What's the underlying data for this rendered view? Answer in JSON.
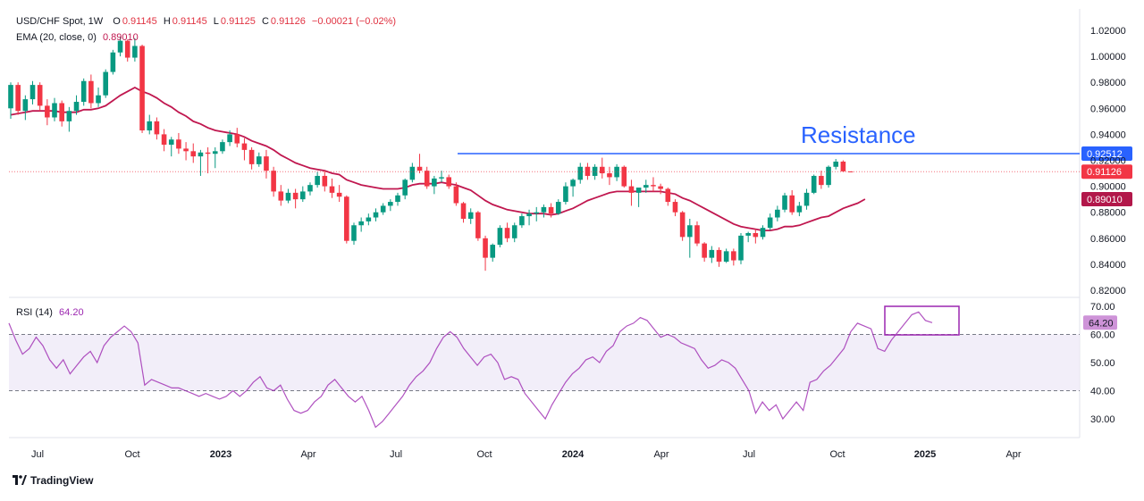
{
  "header": {
    "symbol": "USD/CHF Spot, 1W",
    "open_label": "O",
    "open": "0.91145",
    "high_label": "H",
    "high": "0.91145",
    "low_label": "L",
    "low": "0.91125",
    "close_label": "C",
    "close": "0.91126",
    "change": "−0.00021 (−0.02%)",
    "ema_label": "EMA (20, close, 0)",
    "ema_value": "0.89010",
    "rsi_label": "RSI (14)",
    "rsi_value": "64.20"
  },
  "branding": {
    "logo_text": "TradingView"
  },
  "colors": {
    "up": "#089981",
    "down": "#f23645",
    "ema": "#c0174f",
    "rsi": "#9c27b0",
    "resistance": "#2962ff",
    "rsi_band": "#ede7f6",
    "price_tag": "#f23645"
  },
  "chart_data": [
    {
      "type": "candlestick",
      "interval": "1W",
      "ylim": [
        0.815,
        1.025
      ],
      "yticks": [
        "1.02000",
        "1.00000",
        "0.98000",
        "0.96000",
        "0.94000",
        "0.92000",
        "0.90000",
        "0.88000",
        "0.86000",
        "0.84000",
        "0.82000"
      ],
      "xticks": [
        "Jul",
        "Oct",
        "2023",
        "Apr",
        "Jul",
        "Oct",
        "2024",
        "Apr",
        "Jul",
        "Oct",
        "2025",
        "Apr"
      ],
      "price_labels": {
        "resistance": "0.92512",
        "last": "0.91126",
        "ema": "0.89010"
      },
      "annotation": "Resistance",
      "resistance_level": 0.92512,
      "candles": [
        [
          0.96,
          0.98,
          0.952,
          0.978
        ],
        [
          0.978,
          0.98,
          0.955,
          0.958
        ],
        [
          0.958,
          0.97,
          0.951,
          0.967
        ],
        [
          0.967,
          0.981,
          0.963,
          0.978
        ],
        [
          0.978,
          0.98,
          0.958,
          0.962
        ],
        [
          0.962,
          0.967,
          0.947,
          0.953
        ],
        [
          0.953,
          0.968,
          0.95,
          0.964
        ],
        [
          0.964,
          0.966,
          0.946,
          0.95
        ],
        [
          0.95,
          0.961,
          0.942,
          0.958
        ],
        [
          0.958,
          0.97,
          0.955,
          0.965
        ],
        [
          0.965,
          0.983,
          0.962,
          0.981
        ],
        [
          0.981,
          0.986,
          0.96,
          0.964
        ],
        [
          0.964,
          0.976,
          0.961,
          0.97
        ],
        [
          0.97,
          0.99,
          0.968,
          0.988
        ],
        [
          0.988,
          1.005,
          0.986,
          1.003
        ],
        [
          1.003,
          1.015,
          1.0,
          1.012
        ],
        [
          1.012,
          1.013,
          0.996,
          0.999
        ],
        [
          0.999,
          1.014,
          0.996,
          1.008
        ],
        [
          1.008,
          1.009,
          0.941,
          0.943
        ],
        [
          0.943,
          0.955,
          0.94,
          0.95
        ],
        [
          0.95,
          0.953,
          0.936,
          0.94
        ],
        [
          0.94,
          0.944,
          0.927,
          0.932
        ],
        [
          0.932,
          0.938,
          0.923,
          0.936
        ],
        [
          0.936,
          0.941,
          0.925,
          0.929
        ],
        [
          0.929,
          0.934,
          0.92,
          0.927
        ],
        [
          0.927,
          0.933,
          0.918,
          0.923
        ],
        [
          0.923,
          0.928,
          0.908,
          0.926
        ],
        [
          0.926,
          0.93,
          0.91,
          0.925
        ],
        [
          0.925,
          0.93,
          0.914,
          0.927
        ],
        [
          0.927,
          0.936,
          0.925,
          0.934
        ],
        [
          0.934,
          0.943,
          0.931,
          0.94
        ],
        [
          0.94,
          0.945,
          0.93,
          0.933
        ],
        [
          0.933,
          0.937,
          0.92,
          0.928
        ],
        [
          0.928,
          0.93,
          0.913,
          0.917
        ],
        [
          0.917,
          0.926,
          0.915,
          0.923
        ],
        [
          0.923,
          0.928,
          0.906,
          0.912
        ],
        [
          0.912,
          0.915,
          0.892,
          0.896
        ],
        [
          0.896,
          0.901,
          0.885,
          0.889
        ],
        [
          0.889,
          0.898,
          0.887,
          0.895
        ],
        [
          0.895,
          0.898,
          0.883,
          0.89
        ],
        [
          0.89,
          0.9,
          0.888,
          0.896
        ],
        [
          0.896,
          0.903,
          0.893,
          0.901
        ],
        [
          0.901,
          0.911,
          0.899,
          0.908
        ],
        [
          0.908,
          0.912,
          0.896,
          0.9
        ],
        [
          0.9,
          0.906,
          0.891,
          0.895
        ],
        [
          0.895,
          0.901,
          0.888,
          0.892
        ],
        [
          0.892,
          0.893,
          0.856,
          0.858
        ],
        [
          0.858,
          0.872,
          0.855,
          0.87
        ],
        [
          0.87,
          0.876,
          0.865,
          0.873
        ],
        [
          0.873,
          0.879,
          0.87,
          0.876
        ],
        [
          0.876,
          0.883,
          0.873,
          0.88
        ],
        [
          0.88,
          0.887,
          0.878,
          0.885
        ],
        [
          0.885,
          0.89,
          0.881,
          0.888
        ],
        [
          0.888,
          0.895,
          0.885,
          0.893
        ],
        [
          0.893,
          0.906,
          0.89,
          0.905
        ],
        [
          0.905,
          0.918,
          0.903,
          0.915
        ],
        [
          0.915,
          0.925,
          0.91,
          0.912
        ],
        [
          0.912,
          0.915,
          0.898,
          0.9
        ],
        [
          0.9,
          0.908,
          0.894,
          0.906
        ],
        [
          0.906,
          0.912,
          0.903,
          0.907
        ],
        [
          0.907,
          0.909,
          0.898,
          0.9
        ],
        [
          0.9,
          0.903,
          0.885,
          0.887
        ],
        [
          0.887,
          0.888,
          0.872,
          0.875
        ],
        [
          0.875,
          0.883,
          0.871,
          0.88
        ],
        [
          0.88,
          0.881,
          0.858,
          0.86
        ],
        [
          0.86,
          0.862,
          0.835,
          0.845
        ],
        [
          0.845,
          0.856,
          0.842,
          0.855
        ],
        [
          0.855,
          0.87,
          0.853,
          0.868
        ],
        [
          0.868,
          0.872,
          0.857,
          0.86
        ],
        [
          0.86,
          0.872,
          0.857,
          0.87
        ],
        [
          0.87,
          0.879,
          0.868,
          0.877
        ],
        [
          0.877,
          0.882,
          0.87,
          0.879
        ],
        [
          0.879,
          0.884,
          0.873,
          0.88
        ],
        [
          0.88,
          0.886,
          0.876,
          0.884
        ],
        [
          0.884,
          0.887,
          0.876,
          0.879
        ],
        [
          0.879,
          0.89,
          0.878,
          0.888
        ],
        [
          0.888,
          0.903,
          0.886,
          0.9
        ],
        [
          0.9,
          0.906,
          0.892,
          0.905
        ],
        [
          0.905,
          0.918,
          0.902,
          0.915
        ],
        [
          0.915,
          0.918,
          0.905,
          0.908
        ],
        [
          0.908,
          0.917,
          0.905,
          0.915
        ],
        [
          0.915,
          0.922,
          0.906,
          0.91
        ],
        [
          0.91,
          0.915,
          0.901,
          0.907
        ],
        [
          0.907,
          0.917,
          0.904,
          0.915
        ],
        [
          0.915,
          0.916,
          0.899,
          0.9
        ],
        [
          0.9,
          0.905,
          0.885,
          0.895
        ],
        [
          0.895,
          0.898,
          0.884,
          0.899
        ],
        [
          0.899,
          0.905,
          0.895,
          0.901
        ],
        [
          0.901,
          0.907,
          0.896,
          0.9
        ],
        [
          0.9,
          0.902,
          0.894,
          0.898
        ],
        [
          0.898,
          0.899,
          0.885,
          0.888
        ],
        [
          0.888,
          0.89,
          0.877,
          0.88
        ],
        [
          0.88,
          0.881,
          0.858,
          0.861
        ],
        [
          0.861,
          0.875,
          0.845,
          0.87
        ],
        [
          0.87,
          0.873,
          0.854,
          0.856
        ],
        [
          0.856,
          0.857,
          0.842,
          0.845
        ],
        [
          0.845,
          0.854,
          0.841,
          0.851
        ],
        [
          0.851,
          0.853,
          0.838,
          0.842
        ],
        [
          0.842,
          0.852,
          0.841,
          0.85
        ],
        [
          0.85,
          0.852,
          0.839,
          0.843
        ],
        [
          0.843,
          0.864,
          0.84,
          0.862
        ],
        [
          0.862,
          0.865,
          0.857,
          0.864
        ],
        [
          0.864,
          0.867,
          0.856,
          0.861
        ],
        [
          0.861,
          0.87,
          0.859,
          0.868
        ],
        [
          0.868,
          0.879,
          0.866,
          0.876
        ],
        [
          0.876,
          0.885,
          0.873,
          0.882
        ],
        [
          0.882,
          0.895,
          0.88,
          0.893
        ],
        [
          0.893,
          0.897,
          0.878,
          0.88
        ],
        [
          0.88,
          0.888,
          0.877,
          0.885
        ],
        [
          0.885,
          0.898,
          0.882,
          0.895
        ],
        [
          0.895,
          0.909,
          0.894,
          0.908
        ],
        [
          0.908,
          0.912,
          0.898,
          0.901
        ],
        [
          0.901,
          0.916,
          0.899,
          0.915
        ],
        [
          0.915,
          0.921,
          0.913,
          0.919
        ],
        [
          0.919,
          0.92,
          0.911,
          0.9115
        ],
        [
          0.91145,
          0.91145,
          0.91125,
          0.91126
        ]
      ]
    },
    {
      "type": "line",
      "name": "EMA (20, close, 0)",
      "values": [
        0.955,
        0.956,
        0.957,
        0.958,
        0.958,
        0.958,
        0.958,
        0.957,
        0.957,
        0.957,
        0.959,
        0.959,
        0.96,
        0.962,
        0.966,
        0.97,
        0.973,
        0.976,
        0.973,
        0.971,
        0.968,
        0.964,
        0.961,
        0.957,
        0.954,
        0.95,
        0.948,
        0.945,
        0.943,
        0.942,
        0.941,
        0.94,
        0.938,
        0.935,
        0.933,
        0.931,
        0.928,
        0.924,
        0.921,
        0.918,
        0.916,
        0.914,
        0.913,
        0.912,
        0.91,
        0.909,
        0.905,
        0.903,
        0.901,
        0.9,
        0.899,
        0.898,
        0.898,
        0.898,
        0.899,
        0.901,
        0.902,
        0.902,
        0.902,
        0.903,
        0.902,
        0.901,
        0.899,
        0.897,
        0.893,
        0.889,
        0.886,
        0.884,
        0.882,
        0.881,
        0.88,
        0.879,
        0.879,
        0.879,
        0.878,
        0.879,
        0.881,
        0.883,
        0.886,
        0.889,
        0.891,
        0.893,
        0.895,
        0.896,
        0.896,
        0.896,
        0.896,
        0.896,
        0.896,
        0.896,
        0.895,
        0.894,
        0.891,
        0.889,
        0.886,
        0.883,
        0.88,
        0.877,
        0.874,
        0.871,
        0.869,
        0.868,
        0.867,
        0.866,
        0.866,
        0.867,
        0.869,
        0.869,
        0.87,
        0.872,
        0.874,
        0.876,
        0.877,
        0.88,
        0.883,
        0.885,
        0.887,
        0.8901
      ]
    },
    {
      "type": "line",
      "name": "RSI (14)",
      "ylim": [
        24,
        70
      ],
      "yticks": [
        "70.00",
        "60.00",
        "50.00",
        "40.00",
        "30.00"
      ],
      "band": [
        40,
        60
      ],
      "last_value": "64.20",
      "values": [
        64,
        58,
        53,
        55,
        59,
        56,
        51,
        48,
        51,
        46,
        49,
        52,
        54,
        50,
        56,
        59,
        61,
        63,
        61,
        57,
        42,
        44,
        43,
        42,
        41,
        41,
        40,
        39,
        38,
        39,
        38,
        37,
        38,
        40,
        38,
        40,
        43,
        45,
        41,
        40,
        42,
        37,
        33,
        32,
        33,
        36,
        38,
        42,
        44,
        41,
        38,
        36,
        38,
        33,
        27,
        29,
        32,
        35,
        38,
        42,
        45,
        47,
        50,
        55,
        59,
        61,
        59,
        55,
        52,
        49,
        52,
        53,
        50,
        44,
        45,
        44,
        39,
        36,
        33,
        30,
        35,
        39,
        43,
        46,
        48,
        51,
        52,
        50,
        54,
        56,
        61,
        63,
        64,
        66,
        65,
        62,
        59,
        60,
        59,
        57,
        56,
        55,
        51,
        48,
        49,
        51,
        50,
        48,
        44,
        40,
        32,
        36,
        33,
        35,
        30,
        33,
        36,
        33,
        43,
        44,
        47,
        49,
        52,
        55,
        61,
        64,
        63,
        62,
        55,
        54,
        58,
        61,
        64,
        67,
        68,
        65,
        64.2
      ]
    }
  ]
}
